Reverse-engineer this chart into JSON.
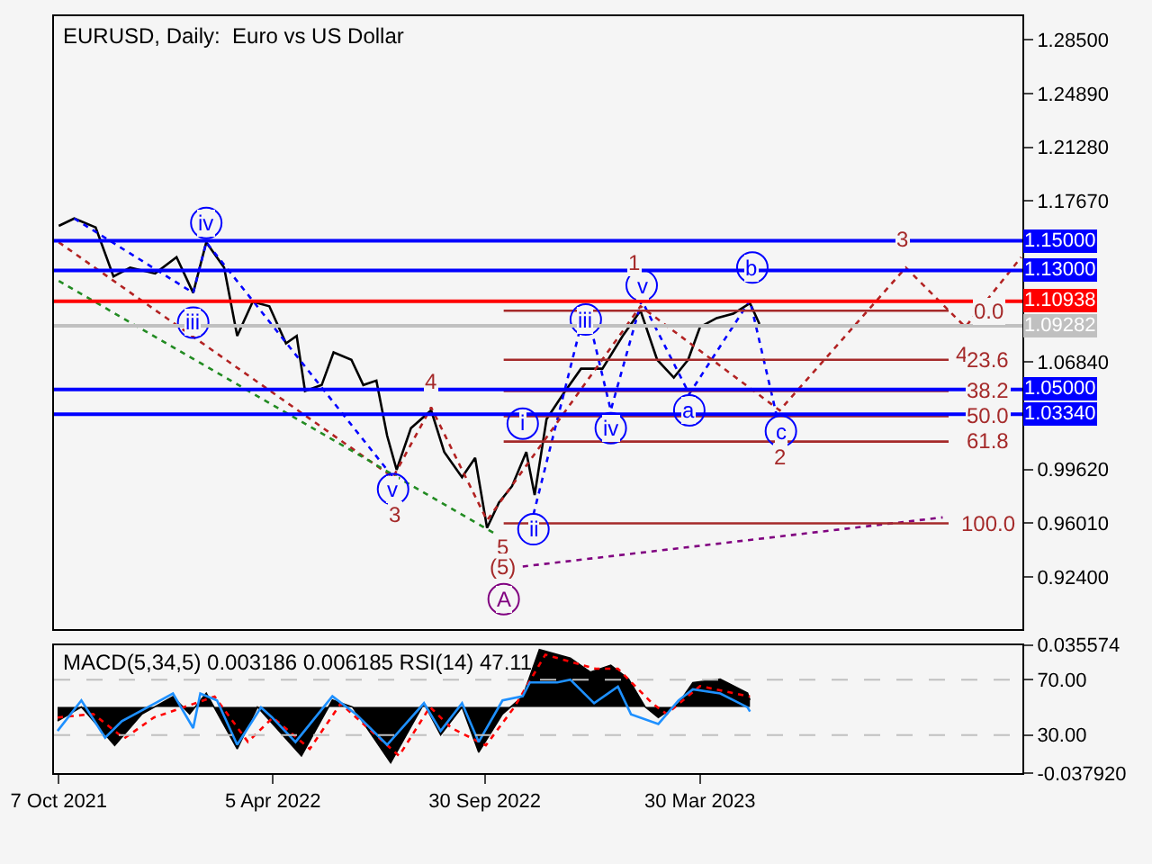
{
  "chart_data": [
    {
      "type": "line",
      "title": "EURUSD, Daily:  Euro vs US Dollar",
      "xlim": [
        "2021-10-03",
        "2023-12-26"
      ],
      "ylim": [
        0.889,
        1.301
      ],
      "yticks": [
        {
          "value": 1.285,
          "label": "1.28500"
        },
        {
          "value": 1.2489,
          "label": "1.24890"
        },
        {
          "value": 1.2128,
          "label": "1.21280"
        },
        {
          "value": 1.1767,
          "label": "1.17670"
        },
        {
          "value": 1.0684,
          "label": "1.06840"
        },
        {
          "value": 0.9962,
          "label": "0.99620"
        },
        {
          "value": 0.9601,
          "label": "0.96010"
        },
        {
          "value": 0.924,
          "label": "0.92400"
        }
      ],
      "tick_labels": "y",
      "grid": false,
      "ref_lines": [
        {
          "axis": "y",
          "value": 1.15,
          "label": "1.15000",
          "color": "#0000ff"
        },
        {
          "axis": "y",
          "value": 1.13,
          "label": "1.13000",
          "color": "#0000ff"
        },
        {
          "axis": "y",
          "value": 1.10938,
          "label": "1.10938",
          "color": "#ff0000"
        },
        {
          "axis": "y",
          "value": 1.09282,
          "label": "1.09282",
          "color": "#c0c0c0"
        },
        {
          "axis": "y",
          "value": 1.05,
          "label": "1.05000",
          "color": "#0000ff"
        },
        {
          "axis": "y",
          "value": 1.0334,
          "label": "1.03340",
          "color": "#0000ff"
        }
      ],
      "series": [
        {
          "color": "#000000",
          "x": [
            "2021-10-07",
            "2021-10-20",
            "2021-11-07",
            "2021-11-22",
            "2021-12-06",
            "2021-12-27",
            "2022-01-14",
            "2022-01-28",
            "2022-02-08",
            "2022-02-23",
            "2022-03-06",
            "2022-03-19",
            "2022-04-02",
            "2022-04-16",
            "2022-04-25",
            "2022-05-02",
            "2022-05-16",
            "2022-05-26",
            "2022-06-10",
            "2022-06-20",
            "2022-07-01",
            "2022-07-10",
            "2022-07-18",
            "2022-07-30",
            "2022-08-16",
            "2022-08-27",
            "2022-09-11",
            "2022-09-22",
            "2022-10-02",
            "2022-10-12",
            "2022-10-23",
            "2022-11-04",
            "2022-11-11",
            "2022-11-21",
            "2022-12-05",
            "2022-12-20",
            "2023-01-07",
            "2023-01-24",
            "2023-02-08",
            "2023-02-22",
            "2023-03-08",
            "2023-03-20",
            "2023-03-30",
            "2023-04-13",
            "2023-04-27",
            "2023-05-11",
            "2023-05-19"
          ],
          "values": [
            1.16,
            1.165,
            1.159,
            1.126,
            1.132,
            1.128,
            1.139,
            1.115,
            1.149,
            1.132,
            1.086,
            1.109,
            1.106,
            1.081,
            1.086,
            1.049,
            1.053,
            1.075,
            1.07,
            1.053,
            1.056,
            1.019,
            0.996,
            1.024,
            1.036,
            1.008,
            0.991,
            1.004,
            0.957,
            0.974,
            0.985,
            1.008,
            0.979,
            1.03,
            1.047,
            1.064,
            1.064,
            1.086,
            1.103,
            1.07,
            1.058,
            1.07,
            1.092,
            1.098,
            1.101,
            1.108,
            1.094
          ]
        },
        {
          "type": "line",
          "color": "#0000ff",
          "line_style": "dotted",
          "x": [
            "2021-10-20",
            "2022-01-28",
            "2022-02-08",
            "2022-07-15",
            "2022-08-01",
            "2022-11-10",
            "2022-12-24",
            "2023-01-14",
            "2023-02-09",
            "2023-03-21",
            "2023-05-11",
            "2023-06-02"
          ],
          "values": [
            1.165,
            1.115,
            1.149,
            0.991,
            null,
            0.966,
            1.106,
            1.036,
            1.11,
            1.047,
            1.11,
            1.034
          ]
        },
        {
          "type": "line",
          "color": "#b22222",
          "line_style": "dotted",
          "x": [
            "2021-10-07",
            "2022-07-15",
            "2022-08-16",
            "2022-10-02",
            "2023-02-08",
            "2023-06-05",
            "2023-09-19",
            "2023-11-08",
            "2023-12-25"
          ],
          "values": [
            1.149,
            0.991,
            1.038,
            0.962,
            1.106,
            1.036,
            1.132,
            1.092,
            1.139
          ]
        },
        {
          "type": "line",
          "color": "#228b22",
          "line_style": "dotted",
          "x": [
            "2021-10-07",
            "2022-10-13"
          ],
          "values": [
            1.123,
            0.951
          ]
        },
        {
          "type": "line",
          "color": "#800080",
          "line_style": "dotted",
          "x": [
            "2022-11-01",
            "2023-10-20"
          ],
          "values": [
            0.931,
            0.964
          ]
        },
        {
          "type": "line",
          "color": "#a52a2a",
          "x": [
            "2022-10-16",
            "2023-10-25"
          ],
          "values": [
            1.103,
            1.103
          ]
        },
        {
          "type": "line",
          "color": "#a52a2a",
          "x": [
            "2022-10-16",
            "2023-10-25"
          ],
          "values": [
            1.07,
            1.07
          ]
        },
        {
          "type": "line",
          "color": "#a52a2a",
          "x": [
            "2022-10-16",
            "2023-10-25"
          ],
          "values": [
            1.049,
            1.049
          ]
        },
        {
          "type": "line",
          "color": "#a52a2a",
          "x": [
            "2022-10-16",
            "2023-10-25"
          ],
          "values": [
            1.032,
            1.032
          ]
        },
        {
          "type": "line",
          "color": "#a52a2a",
          "x": [
            "2022-10-16",
            "2023-10-25"
          ],
          "values": [
            1.015,
            1.015
          ]
        },
        {
          "type": "line",
          "color": "#a52a2a",
          "x": [
            "2022-10-16",
            "2023-10-25"
          ],
          "values": [
            0.96,
            0.96
          ]
        },
        {
          "type": "scatter",
          "marker": "circle",
          "color": "#0000ff",
          "x": [
            "2022-02-08",
            "2022-01-28",
            "2022-07-15",
            "2022-11-01",
            "2022-11-10",
            "2022-12-24",
            "2023-01-14",
            "2023-02-09",
            "2023-03-21",
            "2023-05-13",
            "2023-06-06"
          ],
          "values": [
            1.162,
            1.095,
            0.983,
            1.027,
            0.956,
            1.097,
            1.024,
            1.12,
            1.036,
            1.132,
            1.022
          ]
        },
        {
          "type": "scatter",
          "marker": "circle",
          "color": "#800080",
          "x": [
            "2022-10-16"
          ],
          "values": [
            0.909
          ]
        }
      ],
      "annotations": [
        {
          "text": "iv",
          "x": "2022-02-08",
          "y": 1.162
        },
        {
          "text": "iii",
          "x": "2022-01-28",
          "y": 1.095
        },
        {
          "text": "v",
          "x": "2022-07-15",
          "y": 0.983
        },
        {
          "text": "i",
          "x": "2022-11-01",
          "y": 1.027
        },
        {
          "text": "ii",
          "x": "2022-11-10",
          "y": 0.956
        },
        {
          "text": "iii",
          "x": "2022-12-24",
          "y": 1.097
        },
        {
          "text": "iv",
          "x": "2023-01-14",
          "y": 1.024
        },
        {
          "text": "v",
          "x": "2023-02-09",
          "y": 1.12
        },
        {
          "text": "a",
          "x": "2023-03-21",
          "y": 1.036
        },
        {
          "text": "b",
          "x": "2023-05-13",
          "y": 1.132
        },
        {
          "text": "c",
          "x": "2023-06-06",
          "y": 1.022
        },
        {
          "text": "3",
          "x": "2022-07-17",
          "y": 0.966
        },
        {
          "text": "4",
          "x": "2022-08-16",
          "y": 1.055
        },
        {
          "text": "5",
          "x": "2022-10-16",
          "y": 0.944
        },
        {
          "text": "(5)",
          "x": "2022-10-16",
          "y": 0.931
        },
        {
          "text": "A",
          "x": "2022-10-16",
          "y": 0.909
        },
        {
          "text": "1",
          "x": "2023-02-03",
          "y": 1.135
        },
        {
          "text": "2",
          "x": "2023-06-05",
          "y": 1.005
        },
        {
          "text": "3",
          "x": "2023-09-17",
          "y": 1.151
        },
        {
          "text": "4",
          "x": "2023-11-06",
          "y": 1.074
        },
        {
          "text": "0.0",
          "x": "2023-11-28",
          "y": 1.103
        },
        {
          "text": "23.6",
          "x": "2023-11-28",
          "y": 1.07
        },
        {
          "text": "38.2",
          "x": "2023-11-28",
          "y": 1.049
        },
        {
          "text": "50.0",
          "x": "2023-11-28",
          "y": 1.032
        },
        {
          "text": "61.8",
          "x": "2023-11-28",
          "y": 1.015
        },
        {
          "text": "100.0",
          "x": "2023-11-28",
          "y": 0.96
        }
      ]
    },
    {
      "type": "area",
      "title": "MACD(5,34,5) 0.003186 0.006185 RSI(14) 47.11",
      "xlim": [
        "2021-10-03",
        "2023-12-26"
      ],
      "ylim": [
        -0.03792,
        0.035574
      ],
      "y2lim": [
        2.5,
        95
      ],
      "xticks": [
        {
          "value": "2021-10-07",
          "label": "7 Oct 2021"
        },
        {
          "value": "2022-04-05",
          "label": "5 Apr 2022"
        },
        {
          "value": "2022-09-30",
          "label": "30 Sep 2022"
        },
        {
          "value": "2023-03-30",
          "label": "30 Mar 2023"
        }
      ],
      "yticks": [
        {
          "value": 0.035574,
          "label": "0.035574"
        },
        {
          "value": -0.03792,
          "label": "-0.037920"
        }
      ],
      "y2ticks": [
        {
          "value": 70,
          "label": "70.00"
        },
        {
          "value": 30,
          "label": "30.00"
        }
      ],
      "grid": false,
      "ref_lines": [
        {
          "axis": "y2",
          "value": 70,
          "label": null,
          "color": "#c0c0c0",
          "line_style": "dashed"
        },
        {
          "axis": "y2",
          "value": 30,
          "label": null,
          "color": "#c0c0c0",
          "line_style": "dashed"
        }
      ],
      "series": [
        {
          "color": "#000000",
          "x": [
            "2021-10-06",
            "2021-10-26",
            "2021-11-23",
            "2021-12-16",
            "2022-01-11",
            "2022-01-25",
            "2022-02-08",
            "2022-03-06",
            "2022-03-23",
            "2022-04-29",
            "2022-05-25",
            "2022-06-11",
            "2022-07-13",
            "2022-08-10",
            "2022-08-24",
            "2022-09-11",
            "2022-09-25",
            "2022-10-15",
            "2022-11-01",
            "2022-11-15",
            "2022-12-11",
            "2022-12-28",
            "2023-01-14",
            "2023-01-29",
            "2023-02-12",
            "2023-02-23",
            "2023-03-12",
            "2023-03-24",
            "2023-04-16",
            "2023-05-09",
            "2023-05-11"
          ],
          "values": [
            -0.008,
            0.0,
            -0.022,
            -0.004,
            0.006,
            -0.004,
            0.008,
            -0.024,
            0.0,
            -0.028,
            0.004,
            0.0,
            -0.032,
            0.002,
            -0.016,
            0.0,
            -0.026,
            -0.004,
            0.006,
            0.033,
            0.028,
            0.02,
            0.024,
            0.016,
            0.0,
            -0.006,
            0.002,
            0.014,
            0.016,
            0.008,
            0.004
          ]
        },
        {
          "type": "line",
          "color": "#ff0000",
          "line_style": "dotted",
          "x": [
            "2021-10-06",
            "2021-11-05",
            "2021-12-01",
            "2021-12-26",
            "2022-02-15",
            "2022-03-15",
            "2022-04-05",
            "2022-05-06",
            "2022-06-01",
            "2022-07-20",
            "2022-08-15",
            "2022-09-02",
            "2022-10-01",
            "2022-10-25",
            "2022-11-20",
            "2023-01-01",
            "2023-01-20",
            "2023-02-18",
            "2023-03-02",
            "2023-03-30",
            "2023-05-11"
          ],
          "values": [
            -0.006,
            -0.004,
            -0.018,
            -0.006,
            0.006,
            -0.02,
            -0.006,
            -0.024,
            0.002,
            -0.028,
            0.0,
            -0.012,
            -0.022,
            0.0,
            0.03,
            0.022,
            0.022,
            0.002,
            -0.004,
            0.012,
            0.006
          ]
        },
        {
          "type": "line",
          "axis": "y2",
          "color": "#1e90ff",
          "x": [
            "2021-10-06",
            "2021-10-26",
            "2021-11-15",
            "2021-11-29",
            "2021-12-27",
            "2022-01-11",
            "2022-01-28",
            "2022-02-03",
            "2022-02-17",
            "2022-03-06",
            "2022-03-26",
            "2022-04-04",
            "2022-04-24",
            "2022-05-25",
            "2022-06-14",
            "2022-07-10",
            "2022-08-10",
            "2022-08-24",
            "2022-09-11",
            "2022-09-25",
            "2022-10-15",
            "2022-11-01",
            "2022-11-07",
            "2022-11-30",
            "2022-12-11",
            "2022-12-31",
            "2023-01-20",
            "2023-01-31",
            "2023-02-23",
            "2023-03-12",
            "2023-03-24",
            "2023-04-16",
            "2023-05-09",
            "2023-05-11"
          ],
          "values": [
            33,
            55,
            28,
            40,
            53,
            60,
            35,
            60,
            55,
            23,
            50,
            43,
            25,
            58,
            45,
            23,
            53,
            33,
            53,
            25,
            55,
            58,
            68,
            68,
            70,
            53,
            65,
            45,
            38,
            55,
            63,
            60,
            50,
            47
          ]
        }
      ]
    }
  ]
}
